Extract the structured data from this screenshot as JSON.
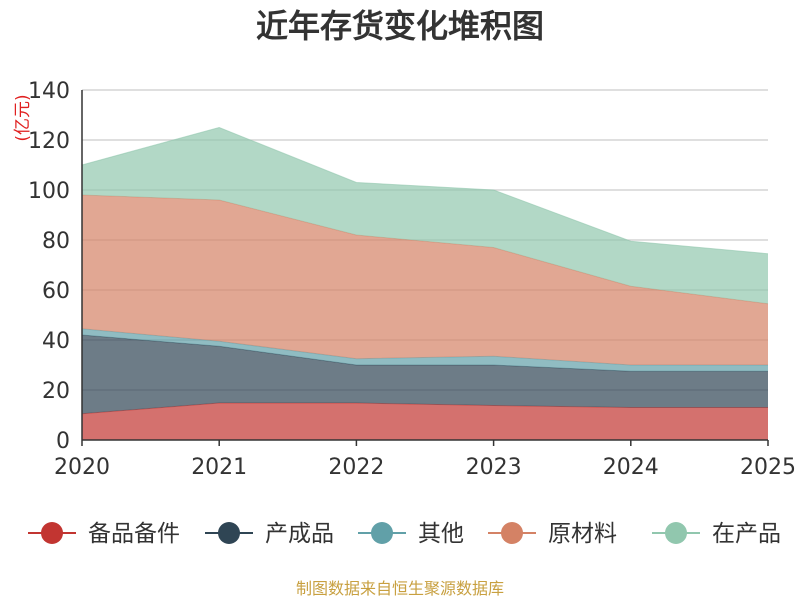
{
  "chart_data": {
    "type": "area",
    "stacked": true,
    "title": "近年存货变化堆积图",
    "ylabel": "(亿元)",
    "xlabel": "",
    "x": [
      "2020",
      "2021",
      "2022",
      "2023",
      "2024",
      "2025"
    ],
    "ylim": [
      0,
      140
    ],
    "yticks": [
      "0",
      "20",
      "40",
      "60",
      "80",
      "100",
      "120",
      "140"
    ],
    "grid": true,
    "legend_position": "bottom",
    "series": [
      {
        "name": "备品备件",
        "color": "#c23531",
        "values": [
          10.5,
          14.8,
          14.8,
          13.8,
          13.0,
          13.0
        ]
      },
      {
        "name": "产成品",
        "color": "#2f4554",
        "values": [
          31.5,
          22.7,
          15.2,
          16.2,
          14.5,
          14.5
        ]
      },
      {
        "name": "其他",
        "color": "#61a0a8",
        "values": [
          2.5,
          2.0,
          2.5,
          3.5,
          2.5,
          2.5
        ]
      },
      {
        "name": "原材料",
        "color": "#d48265",
        "values": [
          53.5,
          56.5,
          49.5,
          43.5,
          31.5,
          24.5
        ]
      },
      {
        "name": "在产品",
        "color": "#91c7ae",
        "values": [
          12.0,
          29.0,
          21.0,
          23.0,
          18.0,
          20.0
        ]
      }
    ]
  },
  "footer": {
    "source": "制图数据来自恒生聚源数据库"
  }
}
